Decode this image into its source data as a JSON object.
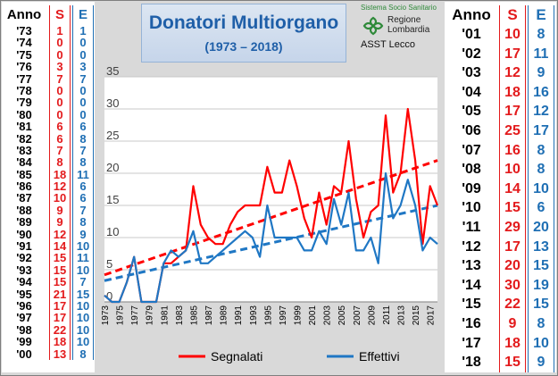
{
  "left_table": {
    "headers": [
      "Anno",
      "S",
      "E"
    ],
    "years": [
      "'73",
      "'74",
      "'75",
      "'76",
      "'77",
      "'78",
      "'79",
      "'80",
      "'81",
      "'82",
      "'83",
      "'84",
      "'85",
      "'86",
      "'87",
      "'88",
      "'89",
      "'90",
      "'91",
      "'92",
      "'93",
      "'94",
      "'95",
      "'96",
      "'97",
      "'98",
      "'99",
      "'00"
    ],
    "s": [
      "1",
      "0",
      "0",
      "3",
      "7",
      "0",
      "0",
      "0",
      "6",
      "6",
      "7",
      "8",
      "18",
      "12",
      "10",
      "9",
      "9",
      "12",
      "14",
      "15",
      "15",
      "15",
      "21",
      "17",
      "17",
      "22",
      "18",
      "13"
    ],
    "e": [
      "1",
      "0",
      "0",
      "3",
      "7",
      "0",
      "0",
      "0",
      "6",
      "8",
      "7",
      "8",
      "11",
      "6",
      "6",
      "7",
      "8",
      "9",
      "10",
      "11",
      "10",
      "7",
      "15",
      "10",
      "10",
      "10",
      "10",
      "8"
    ]
  },
  "right_table": {
    "headers": [
      "Anno",
      "S",
      "E"
    ],
    "years": [
      "'01",
      "'02",
      "'03",
      "'04",
      "'05",
      "'06",
      "'07",
      "'08",
      "'09",
      "'10",
      "'11",
      "'12",
      "'13",
      "'14",
      "'15",
      "'16",
      "'17",
      "'18"
    ],
    "s": [
      "10",
      "17",
      "12",
      "18",
      "17",
      "25",
      "16",
      "10",
      "14",
      "15",
      "29",
      "17",
      "20",
      "30",
      "22",
      "9",
      "18",
      "15"
    ],
    "e": [
      "8",
      "11",
      "9",
      "16",
      "12",
      "17",
      "8",
      "8",
      "10",
      "6",
      "20",
      "13",
      "15",
      "19",
      "15",
      "8",
      "10",
      "9"
    ]
  },
  "title": {
    "main": "Donatori Multiorgano",
    "sub": "(1973 – 2018)"
  },
  "logo": {
    "line1": "Sistema Socio Sanitario",
    "line2a": "Regione",
    "line2b": "Lombardia",
    "line3": "ASST Lecco"
  },
  "colors": {
    "segnalati": "#ff0000",
    "effettivi": "#1f77c4",
    "s_header": "#e31a1c",
    "e_header": "#1f6fb4"
  },
  "chart_data": {
    "type": "line",
    "x": [
      1973,
      1974,
      1975,
      1976,
      1977,
      1978,
      1979,
      1980,
      1981,
      1982,
      1983,
      1984,
      1985,
      1986,
      1987,
      1988,
      1989,
      1990,
      1991,
      1992,
      1993,
      1994,
      1995,
      1996,
      1997,
      1998,
      1999,
      2000,
      2001,
      2002,
      2003,
      2004,
      2005,
      2006,
      2007,
      2008,
      2009,
      2010,
      2011,
      2012,
      2013,
      2014,
      2015,
      2016,
      2017,
      2018
    ],
    "x_tick_labels": [
      "1973",
      "1975",
      "1977",
      "1979",
      "1981",
      "1983",
      "1985",
      "1987",
      "1989",
      "1991",
      "1993",
      "1995",
      "1997",
      "1999",
      "2001",
      "2003",
      "2005",
      "2007",
      "2009",
      "2011",
      "2013",
      "2015",
      "2017"
    ],
    "series": [
      {
        "name": "Segnalati",
        "values": [
          1,
          0,
          0,
          3,
          7,
          0,
          0,
          0,
          6,
          6,
          7,
          8,
          18,
          12,
          10,
          9,
          9,
          12,
          14,
          15,
          15,
          15,
          21,
          17,
          17,
          22,
          18,
          13,
          10,
          17,
          12,
          18,
          17,
          25,
          16,
          10,
          14,
          15,
          29,
          17,
          20,
          30,
          22,
          9,
          18,
          15
        ],
        "trend": [
          4.2,
          22.0
        ]
      },
      {
        "name": "Effettivi",
        "values": [
          1,
          0,
          0,
          3,
          7,
          0,
          0,
          0,
          6,
          8,
          7,
          8,
          11,
          6,
          6,
          7,
          8,
          9,
          10,
          11,
          10,
          7,
          15,
          10,
          10,
          10,
          10,
          8,
          8,
          11,
          9,
          16,
          12,
          17,
          8,
          8,
          10,
          6,
          20,
          13,
          15,
          19,
          15,
          8,
          10,
          9
        ],
        "trend": [
          3.3,
          15.0
        ]
      }
    ],
    "y_ticks": [
      "0",
      "5",
      "10",
      "15",
      "20",
      "25",
      "30",
      "35"
    ],
    "ylim": [
      0,
      35
    ],
    "xlim": [
      1973,
      2018
    ],
    "grid": true,
    "legend": "bottom"
  }
}
